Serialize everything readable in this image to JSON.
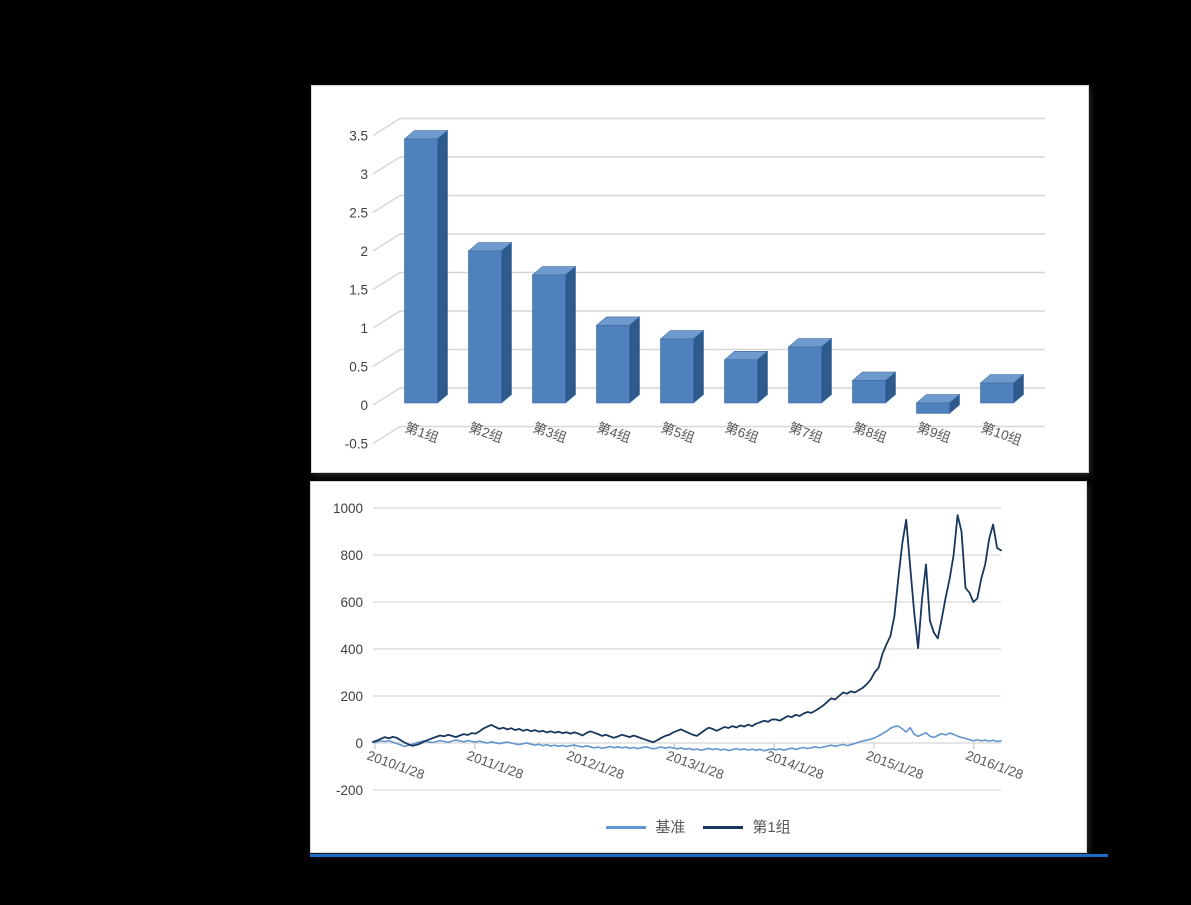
{
  "style": {
    "page_background": "#000000",
    "panel_background": "#ffffff",
    "accent_bar_color": "#1b6bc8",
    "gridline_color": "#d6d6d6",
    "tick_text_color": "#3f3f3f",
    "axis_label_color": "#595959"
  },
  "chart_data": [
    {
      "type": "bar",
      "style_3d": true,
      "title": "",
      "xlabel": "",
      "ylabel": "",
      "categories": [
        "第1组",
        "第2组",
        "第3组",
        "第4组",
        "第5组",
        "第6组",
        "第7组",
        "第8组",
        "第9组",
        "第10组"
      ],
      "values": [
        3.3,
        1.9,
        1.6,
        0.97,
        0.8,
        0.54,
        0.7,
        0.28,
        -0.13,
        0.25
      ],
      "ylim": [
        -0.5,
        3.5
      ],
      "ytick_step": 0.5,
      "ytick_labels": [
        "3.5",
        "3",
        "2.5",
        "2",
        "1.5",
        "1",
        "0.5",
        "0",
        "-0.5"
      ],
      "grid": true,
      "legend": "none",
      "bar_front_color": "#4f81bd",
      "bar_top_color": "#6f9ace",
      "bar_side_color": "#2e5a8c",
      "bar_stroke_color": "#3a6a9f"
    },
    {
      "type": "line",
      "title": "",
      "xlabel": "",
      "ylabel": "",
      "x_tick_labels": [
        "2010/1/28",
        "2011/1/28",
        "2012/1/28",
        "2013/1/28",
        "2014/1/28",
        "2015/1/28",
        "2016/1/28"
      ],
      "ylim": [
        -200,
        1000
      ],
      "ytick_step": 200,
      "ytick_labels": [
        "1000",
        "800",
        "600",
        "400",
        "200",
        "0",
        "-200"
      ],
      "grid": true,
      "legend_position": "bottom",
      "series": [
        {
          "name": "基准",
          "color": "#6295ce",
          "values": [
            2,
            5,
            9,
            6,
            10,
            4,
            -2,
            -8,
            -15,
            -10,
            -5,
            1,
            5,
            9,
            5,
            2,
            6,
            10,
            7,
            3,
            8,
            12,
            9,
            5,
            10,
            7,
            4,
            8,
            3,
            0,
            5,
            1,
            -3,
            1,
            4,
            0,
            -4,
            -7,
            -3,
            0,
            -5,
            -9,
            -5,
            -11,
            -7,
            -13,
            -9,
            -14,
            -10,
            -15,
            -11,
            -9,
            -13,
            -17,
            -12,
            -16,
            -21,
            -17,
            -23,
            -19,
            -15,
            -20,
            -16,
            -21,
            -17,
            -23,
            -19,
            -24,
            -20,
            -16,
            -21,
            -25,
            -21,
            -17,
            -22,
            -18,
            -21,
            -25,
            -21,
            -27,
            -23,
            -29,
            -25,
            -31,
            -27,
            -23,
            -28,
            -24,
            -30,
            -26,
            -32,
            -28,
            -24,
            -29,
            -25,
            -30,
            -26,
            -31,
            -27,
            -33,
            -29,
            -25,
            -29,
            -25,
            -30,
            -26,
            -22,
            -27,
            -23,
            -19,
            -24,
            -20,
            -16,
            -21,
            -17,
            -13,
            -9,
            -14,
            -10,
            -6,
            -11,
            -7,
            -2,
            4,
            8,
            12,
            16,
            22,
            30,
            40,
            50,
            62,
            70,
            72,
            60,
            47,
            65,
            38,
            28,
            36,
            44,
            29,
            24,
            32,
            40,
            34,
            42,
            37,
            29,
            24,
            19,
            14,
            9,
            13,
            9,
            12,
            8,
            11,
            7,
            9
          ]
        },
        {
          "name": "第1组",
          "color": "#17375e",
          "values": [
            5,
            10,
            18,
            25,
            20,
            26,
            22,
            12,
            2,
            -6,
            -12,
            -8,
            -2,
            6,
            14,
            20,
            26,
            32,
            28,
            35,
            30,
            25,
            32,
            38,
            34,
            42,
            40,
            50,
            62,
            70,
            77,
            68,
            60,
            65,
            58,
            63,
            55,
            60,
            52,
            57,
            50,
            55,
            48,
            52,
            45,
            50,
            44,
            48,
            42,
            46,
            40,
            45,
            40,
            32,
            42,
            50,
            44,
            38,
            30,
            35,
            28,
            22,
            28,
            35,
            30,
            25,
            32,
            26,
            20,
            14,
            8,
            4,
            12,
            22,
            30,
            35,
            45,
            52,
            58,
            50,
            42,
            35,
            30,
            42,
            55,
            65,
            60,
            52,
            60,
            68,
            64,
            72,
            66,
            75,
            70,
            78,
            72,
            82,
            88,
            95,
            90,
            100,
            100,
            95,
            105,
            115,
            110,
            120,
            115,
            125,
            132,
            128,
            138,
            148,
            160,
            175,
            190,
            185,
            200,
            215,
            210,
            220,
            215,
            225,
            235,
            250,
            270,
            300,
            320,
            380,
            420,
            455,
            540,
            700,
            850,
            950,
            750,
            560,
            404,
            610,
            760,
            520,
            470,
            445,
            530,
            620,
            700,
            800,
            970,
            900,
            660,
            640,
            600,
            615,
            700,
            760,
            870,
            930,
            830,
            820
          ]
        }
      ]
    }
  ]
}
